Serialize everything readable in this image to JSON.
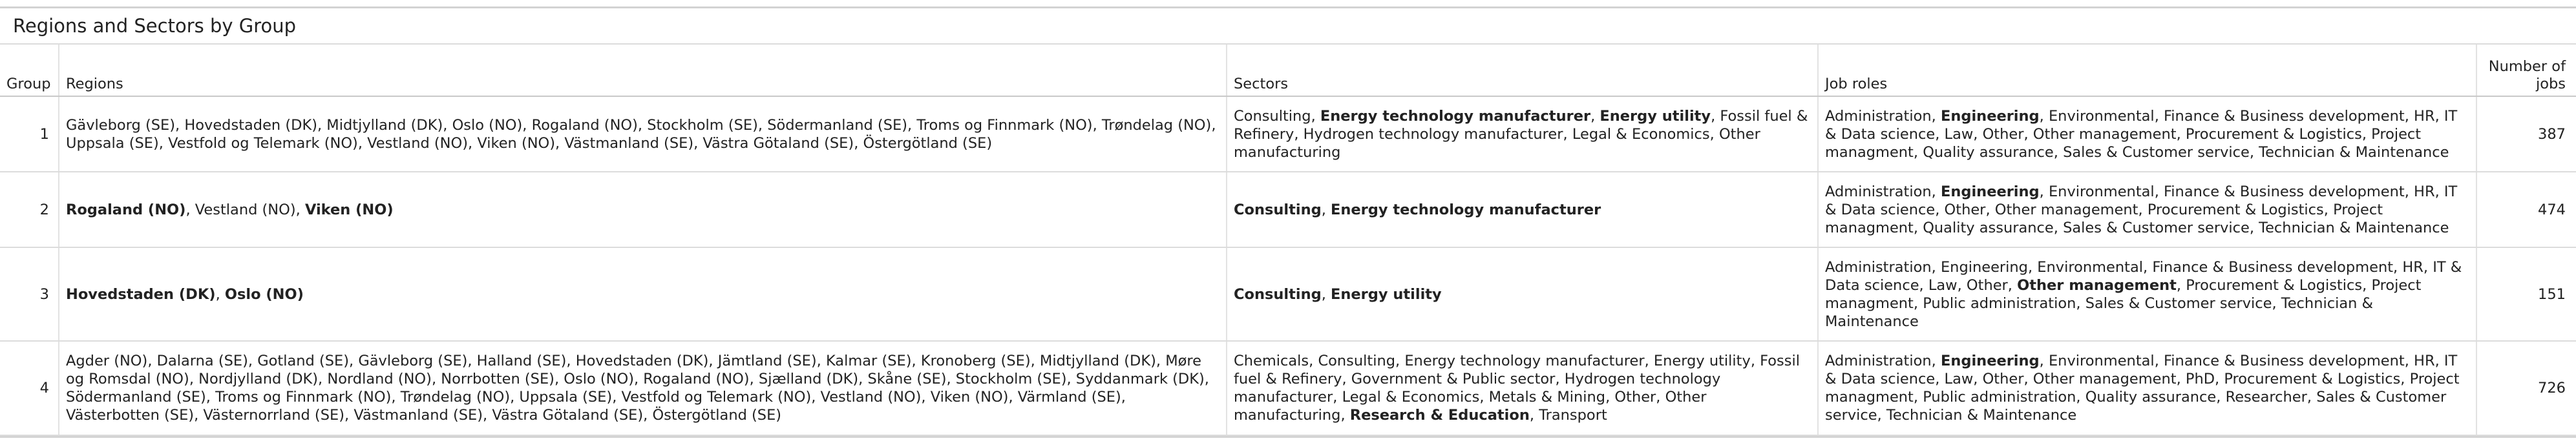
{
  "table": {
    "title": "Regions and Sectors by Group",
    "headers": {
      "group": "Group",
      "regions": "Regions",
      "sectors": "Sectors",
      "job_roles": "Job roles",
      "num_jobs": "Number of jobs"
    },
    "rows": [
      {
        "group": "1",
        "regions": [
          {
            "text": "Gävleborg (SE)",
            "bold": false
          },
          {
            "text": "Hovedstaden (DK)",
            "bold": false
          },
          {
            "text": "Midtjylland (DK)",
            "bold": false
          },
          {
            "text": "Oslo (NO)",
            "bold": false
          },
          {
            "text": "Rogaland (NO)",
            "bold": false
          },
          {
            "text": "Stockholm (SE)",
            "bold": false
          },
          {
            "text": "Södermanland (SE)",
            "bold": false
          },
          {
            "text": "Troms og Finnmark (NO)",
            "bold": false
          },
          {
            "text": "Trøndelag (NO)",
            "bold": false
          },
          {
            "text": "Uppsala (SE)",
            "bold": false
          },
          {
            "text": "Vestfold og Telemark (NO)",
            "bold": false
          },
          {
            "text": "Vestland (NO)",
            "bold": false
          },
          {
            "text": "Viken (NO)",
            "bold": false
          },
          {
            "text": "Västmanland (SE)",
            "bold": false
          },
          {
            "text": "Västra Götaland (SE)",
            "bold": false
          },
          {
            "text": "Östergötland (SE)",
            "bold": false
          }
        ],
        "sectors": [
          {
            "text": "Consulting",
            "bold": false
          },
          {
            "text": "Energy technology manufacturer",
            "bold": true
          },
          {
            "text": "Energy utility",
            "bold": true
          },
          {
            "text": "Fossil fuel & Refinery",
            "bold": false
          },
          {
            "text": "Hydrogen technology manufacturer",
            "bold": false
          },
          {
            "text": "Legal & Economics",
            "bold": false
          },
          {
            "text": "Other manufacturing",
            "bold": false
          }
        ],
        "job_roles": [
          {
            "text": "Administration",
            "bold": false
          },
          {
            "text": "Engineering",
            "bold": true
          },
          {
            "text": "Environmental",
            "bold": false
          },
          {
            "text": "Finance & Business development",
            "bold": false
          },
          {
            "text": "HR",
            "bold": false
          },
          {
            "text": "IT & Data science",
            "bold": false
          },
          {
            "text": "Law",
            "bold": false
          },
          {
            "text": "Other",
            "bold": false
          },
          {
            "text": "Other management",
            "bold": false
          },
          {
            "text": "Procurement & Logistics",
            "bold": false
          },
          {
            "text": "Project managment",
            "bold": false
          },
          {
            "text": "Quality assurance",
            "bold": false
          },
          {
            "text": "Sales & Customer service",
            "bold": false
          },
          {
            "text": "Technician & Maintenance",
            "bold": false
          }
        ],
        "num_jobs": "387"
      },
      {
        "group": "2",
        "regions": [
          {
            "text": "Rogaland (NO)",
            "bold": true
          },
          {
            "text": "Vestland (NO)",
            "bold": false
          },
          {
            "text": "Viken (NO)",
            "bold": true
          }
        ],
        "sectors": [
          {
            "text": "Consulting",
            "bold": true
          },
          {
            "text": "Energy technology manufacturer",
            "bold": true
          }
        ],
        "job_roles": [
          {
            "text": "Administration",
            "bold": false
          },
          {
            "text": "Engineering",
            "bold": true
          },
          {
            "text": "Environmental",
            "bold": false
          },
          {
            "text": "Finance & Business development",
            "bold": false
          },
          {
            "text": "HR",
            "bold": false
          },
          {
            "text": "IT & Data science",
            "bold": false
          },
          {
            "text": "Other",
            "bold": false
          },
          {
            "text": "Other management",
            "bold": false
          },
          {
            "text": "Procurement & Logistics",
            "bold": false
          },
          {
            "text": "Project managment",
            "bold": false
          },
          {
            "text": "Quality assurance",
            "bold": false
          },
          {
            "text": "Sales & Customer service",
            "bold": false
          },
          {
            "text": "Technician & Maintenance",
            "bold": false
          }
        ],
        "num_jobs": "474"
      },
      {
        "group": "3",
        "regions": [
          {
            "text": "Hovedstaden (DK)",
            "bold": true
          },
          {
            "text": "Oslo (NO)",
            "bold": true
          }
        ],
        "sectors": [
          {
            "text": "Consulting",
            "bold": true
          },
          {
            "text": "Energy utility",
            "bold": true
          }
        ],
        "job_roles": [
          {
            "text": "Administration",
            "bold": false
          },
          {
            "text": "Engineering",
            "bold": false
          },
          {
            "text": "Environmental",
            "bold": false
          },
          {
            "text": "Finance & Business development",
            "bold": false
          },
          {
            "text": "HR",
            "bold": false
          },
          {
            "text": "IT & Data science",
            "bold": false
          },
          {
            "text": "Law",
            "bold": false
          },
          {
            "text": "Other",
            "bold": false
          },
          {
            "text": "Other management",
            "bold": true
          },
          {
            "text": "Procurement & Logistics",
            "bold": false
          },
          {
            "text": "Project managment",
            "bold": false
          },
          {
            "text": "Public administration",
            "bold": false
          },
          {
            "text": "Sales & Customer service",
            "bold": false
          },
          {
            "text": "Technician & Maintenance",
            "bold": false
          }
        ],
        "num_jobs": "151"
      },
      {
        "group": "4",
        "regions": [
          {
            "text": "Agder (NO)",
            "bold": false
          },
          {
            "text": "Dalarna (SE)",
            "bold": false
          },
          {
            "text": "Gotland (SE)",
            "bold": false
          },
          {
            "text": "Gävleborg (SE)",
            "bold": false
          },
          {
            "text": "Halland (SE)",
            "bold": false
          },
          {
            "text": "Hovedstaden (DK)",
            "bold": false
          },
          {
            "text": "Jämtland (SE)",
            "bold": false
          },
          {
            "text": "Kalmar (SE)",
            "bold": false
          },
          {
            "text": "Kronoberg (SE)",
            "bold": false
          },
          {
            "text": "Midtjylland (DK)",
            "bold": false
          },
          {
            "text": "Møre og Romsdal (NO)",
            "bold": false
          },
          {
            "text": "Nordjylland (DK)",
            "bold": false
          },
          {
            "text": "Nordland (NO)",
            "bold": false
          },
          {
            "text": "Norrbotten (SE)",
            "bold": false
          },
          {
            "text": "Oslo (NO)",
            "bold": false
          },
          {
            "text": "Rogaland (NO)",
            "bold": false
          },
          {
            "text": "Sjælland (DK)",
            "bold": false
          },
          {
            "text": "Skåne (SE)",
            "bold": false
          },
          {
            "text": "Stockholm (SE)",
            "bold": false
          },
          {
            "text": "Syddanmark (DK)",
            "bold": false
          },
          {
            "text": "Södermanland (SE)",
            "bold": false
          },
          {
            "text": "Troms og Finnmark (NO)",
            "bold": false
          },
          {
            "text": "Trøndelag (NO)",
            "bold": false
          },
          {
            "text": "Uppsala (SE)",
            "bold": false
          },
          {
            "text": "Vestfold og Telemark (NO)",
            "bold": false
          },
          {
            "text": "Vestland (NO)",
            "bold": false
          },
          {
            "text": "Viken (NO)",
            "bold": false
          },
          {
            "text": "Värmland (SE)",
            "bold": false
          },
          {
            "text": "Västerbotten (SE)",
            "bold": false
          },
          {
            "text": "Västernorrland (SE)",
            "bold": false
          },
          {
            "text": "Västmanland (SE)",
            "bold": false
          },
          {
            "text": "Västra Götaland (SE)",
            "bold": false
          },
          {
            "text": "Östergötland (SE)",
            "bold": false
          }
        ],
        "sectors": [
          {
            "text": "Chemicals",
            "bold": false
          },
          {
            "text": "Consulting",
            "bold": false
          },
          {
            "text": "Energy technology manufacturer",
            "bold": false
          },
          {
            "text": "Energy utility",
            "bold": false
          },
          {
            "text": "Fossil fuel & Refinery",
            "bold": false
          },
          {
            "text": "Government & Public sector",
            "bold": false
          },
          {
            "text": "Hydrogen technology manufacturer",
            "bold": false
          },
          {
            "text": "Legal & Economics",
            "bold": false
          },
          {
            "text": "Metals & Mining",
            "bold": false
          },
          {
            "text": "Other",
            "bold": false
          },
          {
            "text": "Other manufacturing",
            "bold": false
          },
          {
            "text": "Research & Education",
            "bold": true
          },
          {
            "text": "Transport",
            "bold": false
          }
        ],
        "job_roles": [
          {
            "text": "Administration",
            "bold": false
          },
          {
            "text": "Engineering",
            "bold": true
          },
          {
            "text": "Environmental",
            "bold": false
          },
          {
            "text": "Finance & Business development",
            "bold": false
          },
          {
            "text": "HR",
            "bold": false
          },
          {
            "text": "IT & Data science",
            "bold": false
          },
          {
            "text": "Law",
            "bold": false
          },
          {
            "text": "Other",
            "bold": false
          },
          {
            "text": "Other management",
            "bold": false
          },
          {
            "text": "PhD",
            "bold": false
          },
          {
            "text": "Procurement & Logistics",
            "bold": false
          },
          {
            "text": "Project managment",
            "bold": false
          },
          {
            "text": "Public administration",
            "bold": false
          },
          {
            "text": "Quality assurance",
            "bold": false
          },
          {
            "text": "Researcher",
            "bold": false
          },
          {
            "text": "Sales & Customer service",
            "bold": false
          },
          {
            "text": "Technician & Maintenance",
            "bold": false
          }
        ],
        "num_jobs": "726"
      }
    ]
  }
}
